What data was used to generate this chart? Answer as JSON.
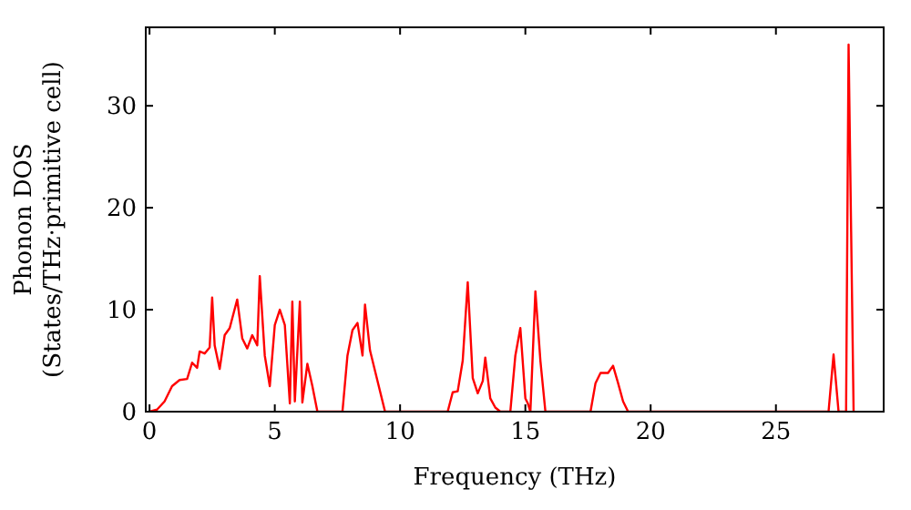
{
  "chart_data": {
    "type": "line",
    "xlabel": "Frequency (THz)",
    "ylabel": "Phonon DOS\n(States/THz·primitive cell)",
    "x": [
      0,
      0.3,
      0.6,
      0.9,
      1.2,
      1.5,
      1.7,
      1.9,
      2.0,
      2.2,
      2.4,
      2.5,
      2.6,
      2.8,
      3.0,
      3.2,
      3.5,
      3.7,
      3.9,
      4.1,
      4.3,
      4.4,
      4.6,
      4.8,
      5.0,
      5.2,
      5.4,
      5.6,
      5.7,
      5.8,
      6.0,
      6.1,
      6.3,
      6.5,
      6.7,
      7.7,
      7.9,
      8.1,
      8.3,
      8.5,
      8.6,
      8.8,
      9.0,
      9.4,
      11.9,
      12.1,
      12.3,
      12.5,
      12.7,
      12.9,
      13.1,
      13.3,
      13.4,
      13.6,
      13.8,
      14.0,
      14.4,
      14.6,
      14.8,
      15.0,
      15.1,
      15.2,
      15.4,
      15.6,
      15.8,
      17.6,
      17.8,
      18.0,
      18.3,
      18.5,
      18.7,
      18.9,
      19.1,
      27.1,
      27.3,
      27.5,
      27.8,
      27.9,
      28.1
    ],
    "series": [
      {
        "color": "#ff0000",
        "values": [
          0,
          0.2,
          1,
          2.5,
          3.1,
          3.2,
          4.8,
          4.3,
          5.9,
          5.7,
          6.3,
          11.2,
          6.5,
          4.2,
          7.5,
          8.2,
          11.0,
          7.2,
          6.2,
          7.5,
          6.5,
          13.3,
          5.5,
          2.5,
          8.5,
          10.0,
          8.5,
          0.8,
          10.8,
          1.0,
          10.8,
          0.9,
          4.7,
          2.5,
          0,
          0,
          5.5,
          8.0,
          8.7,
          5.5,
          10.5,
          6.0,
          4.0,
          0,
          0,
          1.9,
          2.0,
          5.0,
          12.7,
          3.3,
          1.8,
          3.0,
          5.3,
          1.3,
          0.4,
          0,
          0,
          5.5,
          8.2,
          1.3,
          0.8,
          0,
          11.8,
          5,
          0,
          0,
          2.8,
          3.8,
          3.8,
          4.5,
          2.8,
          1.0,
          0,
          0,
          5.6,
          0,
          0,
          36.0,
          0
        ]
      }
    ],
    "xlim": [
      -0.15,
      29.3
    ],
    "ylim": [
      0,
      37.7
    ],
    "xticks": [
      0,
      5,
      10,
      15,
      20,
      25
    ],
    "yticks": [
      0,
      10,
      20,
      30
    ],
    "grid": false,
    "marker": "none",
    "line_style": "solid"
  }
}
